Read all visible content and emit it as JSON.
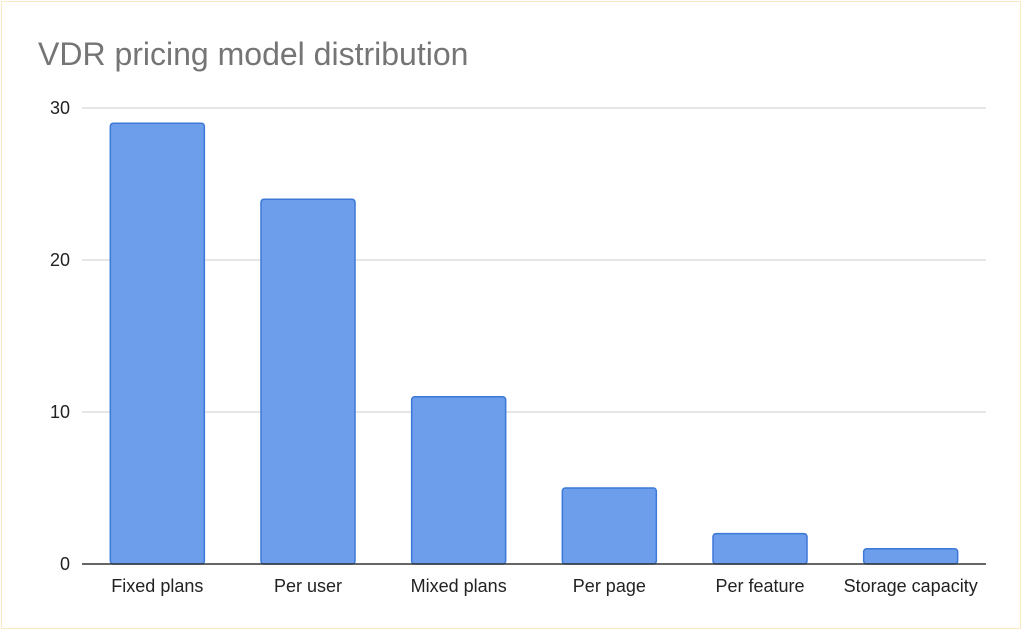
{
  "chart_data": {
    "type": "bar",
    "title": "VDR pricing model distribution",
    "xlabel": "",
    "ylabel": "",
    "categories": [
      "Fixed plans",
      "Per user",
      "Mixed plans",
      "Per page",
      "Per feature",
      "Storage capacity"
    ],
    "values": [
      29,
      24,
      11,
      5,
      2,
      1
    ],
    "ylim": [
      0,
      30
    ],
    "yticks": [
      "0",
      "10",
      "20",
      "30"
    ],
    "grid": true,
    "legend": "none",
    "colors": {
      "bar_fill": "#6d9eeb",
      "bar_stroke": "#3c78d8",
      "grid": "#cccccc",
      "axis": "#333333",
      "title": "#757575",
      "frame": "#fbe9c6"
    }
  }
}
